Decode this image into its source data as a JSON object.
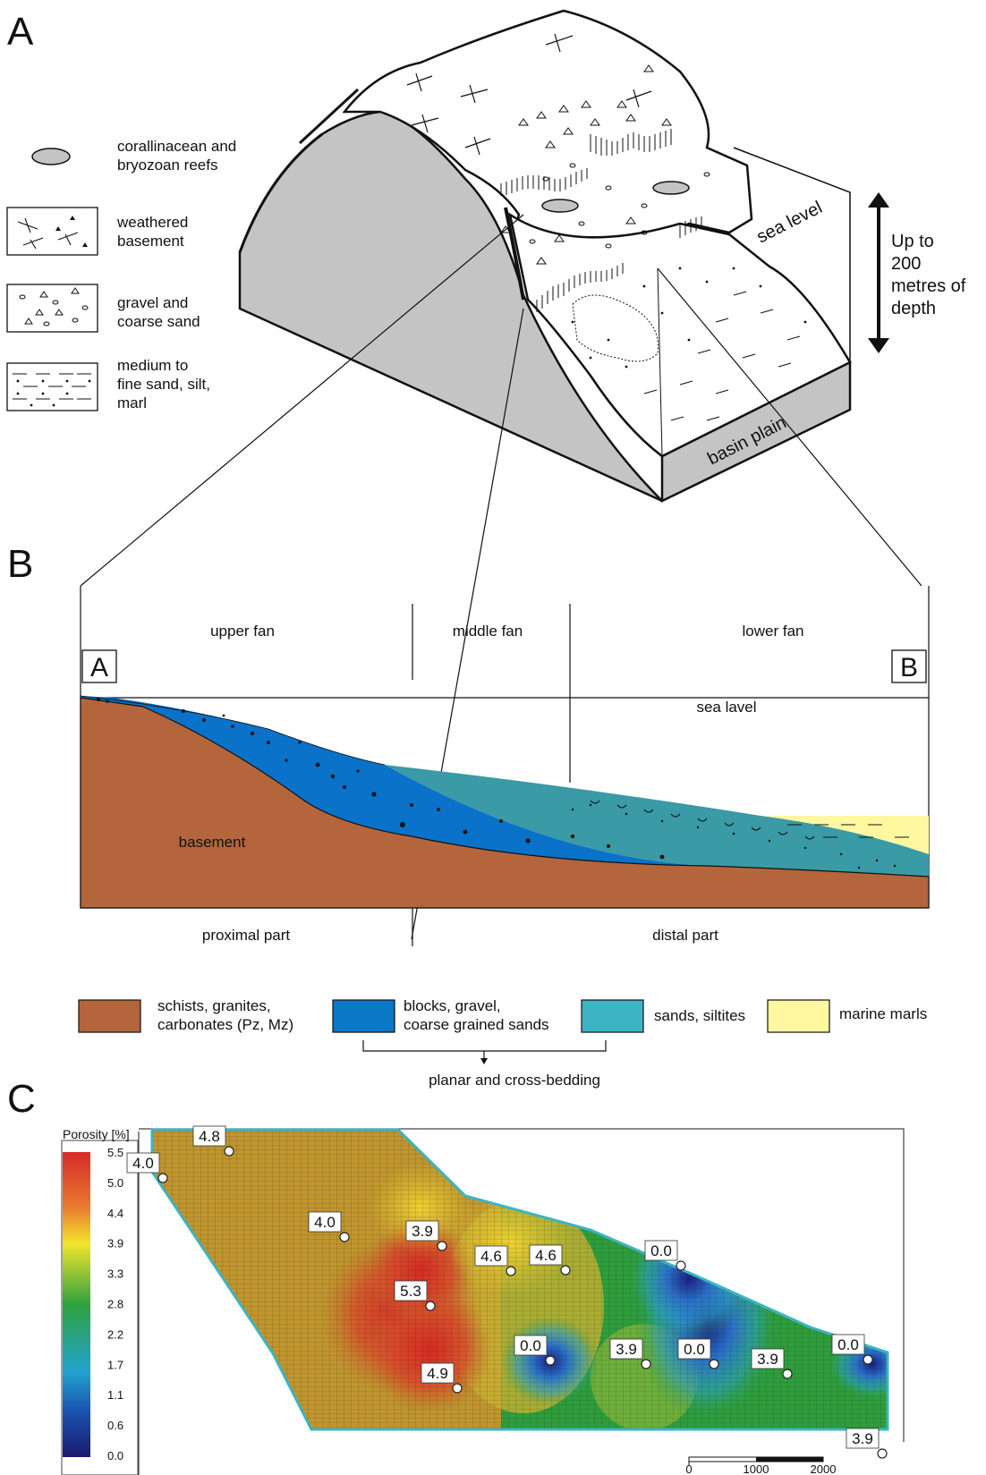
{
  "panel_a": {
    "letter": "A",
    "legend": [
      {
        "icon": "reef-icon",
        "lines": [
          "corallinacean and",
          "bryozoan reefs"
        ]
      },
      {
        "icon": "weathered-basement-icon",
        "lines": [
          "weathered",
          "basement"
        ]
      },
      {
        "icon": "gravel-icon",
        "lines": [
          "gravel and",
          "coarse sand"
        ]
      },
      {
        "icon": "fine-sand-icon",
        "lines": [
          "medium to",
          "fine sand, silt,",
          "marl"
        ]
      }
    ],
    "sea_level": "sea level",
    "basin_plain": "basin plain",
    "depth_lines": [
      "Up to",
      "200",
      "metres of",
      "depth"
    ]
  },
  "panel_b": {
    "letter": "B",
    "zones": [
      "upper fan",
      "middle fan",
      "lower fan"
    ],
    "end_a": "A",
    "end_b": "B",
    "sea_level": "sea lavel",
    "basement": "basement",
    "proximal": "proximal part",
    "distal": "distal part",
    "legend": [
      {
        "color": "#b4653c",
        "lines": [
          "schists, granites,",
          "carbonates (Pz, Mz)"
        ]
      },
      {
        "color": "#0a78c4",
        "lines": [
          "blocks, gravel,",
          "coarse grained sands"
        ]
      },
      {
        "color": "#3cb4c4",
        "lines": [
          "sands, siltites"
        ]
      },
      {
        "color": "#fff8a0",
        "lines": [
          "marine marls"
        ]
      }
    ],
    "bedding": "planar and cross-bedding"
  },
  "panel_c": {
    "letter": "C",
    "colorbar_title": "Porosity [%]",
    "colorbar_ticks": [
      "5.5",
      "5.0",
      "4.4",
      "3.9",
      "3.3",
      "2.8",
      "2.2",
      "1.7",
      "1.1",
      "0.6",
      "0.0"
    ],
    "wells": [
      "4.0",
      "4.8",
      "4.0",
      "3.9",
      "5.3",
      "4.6",
      "4.6",
      "4.9",
      "0.0",
      "0.0",
      "3.9",
      "0.0",
      "3.9",
      "0.0",
      "3.9"
    ],
    "scale_ticks": [
      "0",
      "1000",
      "2000"
    ]
  }
}
